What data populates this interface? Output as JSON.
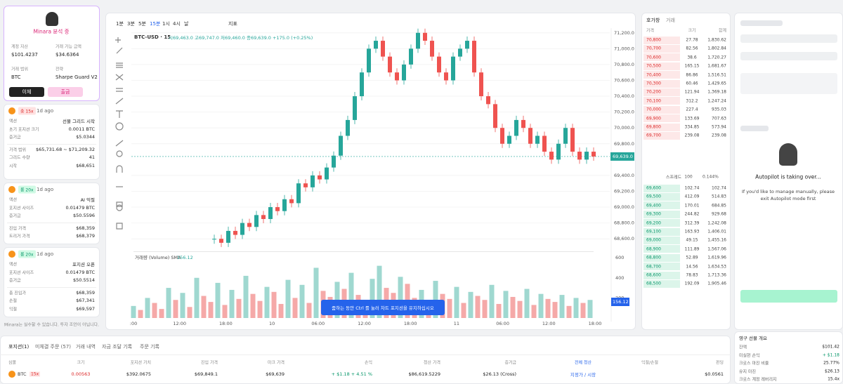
{
  "left": {
    "profile_name": "Minara 분석 중",
    "account": [
      {
        "label": "계정 자산",
        "value": "$101.4237"
      },
      {
        "label": "거래 가능 금액",
        "value": "$34.6364"
      },
      {
        "label": "거래 범위",
        "value": "BTC"
      },
      {
        "label": "전략",
        "value": "Sharpe Guard V2"
      }
    ],
    "buttons": [
      "이체",
      "출금"
    ],
    "cards": [
      {
        "side": "숏 15x",
        "time": "1d ago",
        "rows": [
          [
            "액션",
            "선물 그리드 시작"
          ],
          [
            "초기 포지션 크기",
            "0.0011 BTC"
          ],
          [
            "증거금",
            "$5.0344"
          ],
          [
            "가격 범위",
            "$65,731.68 ~ $71,209.32"
          ],
          [
            "그리드 수량",
            "41"
          ],
          [
            "시작",
            "$68,651"
          ]
        ]
      },
      {
        "side": "롱 20x",
        "time": "1d ago",
        "rows": [
          [
            "액션",
            "AI 익절"
          ],
          [
            "포지션 사이즈",
            "0.01479 BTC"
          ],
          [
            "증거금",
            "$50.5596"
          ],
          [
            "진입 가격",
            "$68,359"
          ],
          [
            "트리거 가격",
            "$68,379"
          ]
        ]
      },
      {
        "side": "롱 20x",
        "time": "1d ago",
        "rows": [
          [
            "액션",
            "포지션 오픈"
          ],
          [
            "포지션 사이즈",
            "0.01479 BTC"
          ],
          [
            "증거금",
            "$50.5514"
          ],
          [
            "총 진입가",
            "$68,359"
          ],
          [
            "손절",
            "$67,341"
          ],
          [
            "익절",
            "$69,597"
          ]
        ]
      }
    ],
    "disclaimer": "Minara는 실수할 수 있습니다. 투자 조언이 아닙니다."
  },
  "chart": {
    "intervals": [
      "1분",
      "3분",
      "5분",
      "15분",
      "1시",
      "4시",
      "날"
    ],
    "indicator_button": "지표",
    "symbol": "BTC-USD · 15",
    "ohlc": "시69,463.0 고69,747.0 저69,460.0 종69,639.0 +175.0 (+0.25%)",
    "last_price": {
      "value": 69639,
      "label": "69,639.0"
    },
    "ylim": [
      68460,
      71260
    ],
    "price_ticks": [
      {
        "value": 71200,
        "label": "71,200.0"
      },
      {
        "value": 71000,
        "label": "71,000.0"
      },
      {
        "value": 70800,
        "label": "70,800.0"
      },
      {
        "value": 70600,
        "label": "70,600.0"
      },
      {
        "value": 70400,
        "label": "70,400.0"
      },
      {
        "value": 70200,
        "label": "70,200.0"
      },
      {
        "value": 70000,
        "label": "70,000.0"
      },
      {
        "value": 69800,
        "label": "69,800.0"
      },
      {
        "value": 69400,
        "label": "69,400.0"
      },
      {
        "value": 69200,
        "label": "69,200.0"
      },
      {
        "value": 69000,
        "label": "69,000.0"
      },
      {
        "value": 68800,
        "label": "68,800.0"
      },
      {
        "value": 68600,
        "label": "68,600.0"
      }
    ],
    "closes": [
      68600,
      68550,
      68700,
      68650,
      68800,
      68750,
      68900,
      68850,
      69000,
      68950,
      69100,
      69050,
      69300,
      69250,
      69400,
      69350,
      69500,
      69650,
      69900,
      70100,
      70400,
      70700,
      71000,
      71100,
      70900,
      70700,
      70600,
      70800,
      71000,
      71200,
      71100,
      70900,
      70700,
      70600,
      70900,
      71000,
      71100,
      70700,
      70400,
      70300,
      70000,
      69800,
      69900,
      70100,
      70000,
      69800,
      69900,
      69700,
      69600,
      69800,
      70000,
      69700,
      69600,
      69700,
      69639
    ],
    "volume_label": "거래량 (Volume) SMA",
    "volume_sma": "156.12",
    "volume_ylim": [
      0,
      650
    ],
    "volume_ticks": [
      600,
      400,
      200
    ],
    "volumes": [
      120,
      80,
      200,
      150,
      90,
      300,
      180,
      250,
      110,
      400,
      220,
      160,
      350,
      130,
      280,
      190,
      420,
      240,
      170,
      310,
      260,
      140,
      380,
      200,
      330,
      150,
      500,
      270,
      210,
      360,
      290,
      450,
      230,
      180,
      390,
      520,
      300,
      250,
      410,
      340,
      200,
      280,
      160,
      370,
      240,
      190,
      310,
      150,
      260,
      220,
      180,
      330,
      140,
      270,
      210,
      170,
      290,
      130,
      240,
      190,
      160,
      230,
      120,
      200,
      150,
      180
    ],
    "time_labels": [
      ":00",
      "12:00",
      "18:00",
      "10",
      "06:00",
      "12:00",
      "18:00",
      "11",
      "06:00",
      "12:00",
      "18:00"
    ],
    "toast": "줌하는 동안 Ctrl 를 눌러 차트 포지션을 유지하십시오"
  },
  "orderbook": {
    "tabs": [
      "호가창",
      "거래"
    ],
    "headers": [
      "가격",
      "크기",
      "합계"
    ],
    "asks": [
      [
        "70,800",
        "27.78",
        "1,830.62"
      ],
      [
        "70,700",
        "82.56",
        "1,802.84"
      ],
      [
        "70,600",
        "38.6",
        "1,720.27"
      ],
      [
        "70,500",
        "165.15",
        "1,681.67"
      ],
      [
        "70,400",
        "86.86",
        "1,516.51"
      ],
      [
        "70,300",
        "60.46",
        "1,429.65"
      ],
      [
        "70,200",
        "121.94",
        "1,369.18"
      ],
      [
        "70,100",
        "312.2",
        "1,247.24"
      ],
      [
        "70,000",
        "227.4",
        "935.03"
      ],
      [
        "69,900",
        "133.69",
        "707.63"
      ],
      [
        "69,800",
        "334.85",
        "573.94"
      ],
      [
        "69,700",
        "239.08",
        "239.08"
      ]
    ],
    "spread": [
      "스프레드",
      "100",
      "0.144%"
    ],
    "bids": [
      [
        "69,600",
        "102.74",
        "102.74"
      ],
      [
        "69,500",
        "412.09",
        "514.83"
      ],
      [
        "69,400",
        "170.01",
        "684.85"
      ],
      [
        "69,300",
        "244.82",
        "929.68"
      ],
      [
        "69,200",
        "312.39",
        "1,242.08"
      ],
      [
        "69,100",
        "163.93",
        "1,406.01"
      ],
      [
        "69,000",
        "49.15",
        "1,455.16"
      ],
      [
        "68,900",
        "111.89",
        "1,567.06"
      ],
      [
        "68,800",
        "52.89",
        "1,619.96"
      ],
      [
        "68,700",
        "14.56",
        "1,634.53"
      ],
      [
        "68,600",
        "78.83",
        "1,713.36"
      ],
      [
        "68,500",
        "192.09",
        "1,905.46"
      ]
    ]
  },
  "autopilot": {
    "title": "Autopilot is taking over...",
    "message": "If you'd like to manage manually, please exit Autopilot mode first"
  },
  "overview": {
    "title": "영구 선물 개요",
    "rows": [
      [
        "잔액",
        "$101.42"
      ],
      [
        "미실현 손익",
        "+ $1.18"
      ],
      [
        "크로스 마진 비율",
        "25.77%"
      ],
      [
        "유지 마진",
        "$26.13"
      ],
      [
        "크로스 계정 레버리지",
        "15.4x"
      ]
    ]
  },
  "positions": {
    "tabs": [
      "포지션(1)",
      "미체결 주문 (57)",
      "거래 내역",
      "자금 조달 기록",
      "주문 기록"
    ],
    "headers": [
      "심볼",
      "크기",
      "포지션 가치",
      "진입 가격",
      "마크 가격",
      "손익",
      "청산 가격",
      "증거금",
      "전체 청산",
      "익절/손절",
      "펀딩"
    ],
    "row": {
      "symbol": "BTC",
      "leverage": "15x",
      "size": "0.00563",
      "value": "$392.0675",
      "entry": "$69,849.1",
      "mark": "$69,639",
      "pnl": "+ $1.18 + 4.51 %",
      "liq": "$86,619.5229",
      "margin": "$26.13 (Cross)",
      "close": "지정가 / 시장",
      "funding": "$0.0561"
    }
  }
}
